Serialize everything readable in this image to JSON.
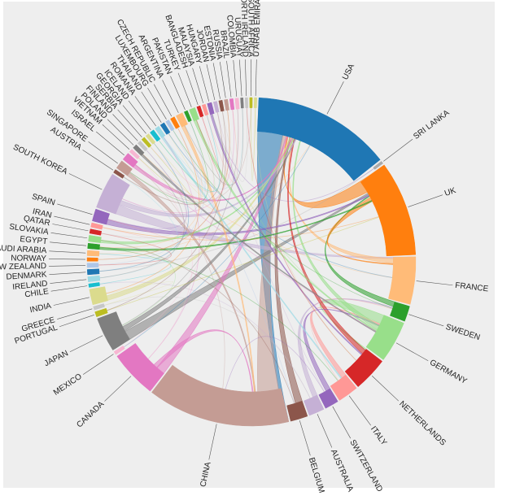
{
  "colors": {
    "panel_background": "#eeeeee",
    "page_background": "#ffffff",
    "label_color": "#222222",
    "ribbon_grey": "#c8c8c8"
  },
  "chart_data": {
    "type": "chord",
    "title": "",
    "grid": false,
    "legend": "none",
    "value_unit": "relative flow (estimated from arc spans)",
    "nodes": [
      {
        "name": "USA",
        "value": 160,
        "color": "#1f77b4"
      },
      {
        "name": "SRI LANKA",
        "value": 3,
        "color": "#aaaaaa"
      },
      {
        "name": "UK",
        "value": 110,
        "color": "#ff7f0e"
      },
      {
        "name": "FRANCE",
        "value": 55,
        "color": "#ffbb78"
      },
      {
        "name": "SWEDEN",
        "value": 18,
        "color": "#2ca02c"
      },
      {
        "name": "GERMANY",
        "value": 48,
        "color": "#98df8a"
      },
      {
        "name": "NETHERLANDS",
        "value": 40,
        "color": "#d62728"
      },
      {
        "name": "ITALY",
        "value": 24,
        "color": "#ff9896"
      },
      {
        "name": "SWITZERLAND",
        "value": 16,
        "color": "#9467bd"
      },
      {
        "name": "AUSTRALIA",
        "value": 18,
        "color": "#c5b0d5"
      },
      {
        "name": "BELGIUM",
        "value": 20,
        "color": "#8c564b"
      },
      {
        "name": "CHINA",
        "value": 165,
        "color": "#c49c94"
      },
      {
        "name": "CANADA",
        "value": 55,
        "color": "#e377c2"
      },
      {
        "name": "MEXICO",
        "value": 4,
        "color": "#f7b6d2"
      },
      {
        "name": "JAPAN",
        "value": 40,
        "color": "#7f7f7f"
      },
      {
        "name": "PORTUGAL",
        "value": 6,
        "color": "#bcbd22"
      },
      {
        "name": "GREECE",
        "value": 4,
        "color": "#c7c7c7"
      },
      {
        "name": "INDIA",
        "value": 18,
        "color": "#dbdb8d"
      },
      {
        "name": "CHILE",
        "value": 4,
        "color": "#17becf"
      },
      {
        "name": "IRELAND",
        "value": 6,
        "color": "#9edae5"
      },
      {
        "name": "DENMARK",
        "value": 6,
        "color": "#1f77b4"
      },
      {
        "name": "NEW ZEALAND",
        "value": 5,
        "color": "#aec7e8"
      },
      {
        "name": "NORWAY",
        "value": 4,
        "color": "#ff7f0e"
      },
      {
        "name": "SAUDI ARABIA",
        "value": 6,
        "color": "#ffbb78"
      },
      {
        "name": "EGYPT",
        "value": 6,
        "color": "#2ca02c"
      },
      {
        "name": "SLOVAKIA",
        "value": 7,
        "color": "#98df8a"
      },
      {
        "name": "QATAR",
        "value": 5,
        "color": "#d62728"
      },
      {
        "name": "IRAN",
        "value": 5,
        "color": "#ff9896"
      },
      {
        "name": "SPAIN",
        "value": 14,
        "color": "#9467bd"
      },
      {
        "name": "SOUTH KOREA",
        "value": 42,
        "color": "#c5b0d5"
      },
      {
        "name": "AUSTRIA",
        "value": 4,
        "color": "#8c564b"
      },
      {
        "name": "SINGAPORE",
        "value": 10,
        "color": "#c49c94"
      },
      {
        "name": "ISRAEL",
        "value": 9,
        "color": "#e377c2"
      },
      {
        "name": "VIETNAM",
        "value": 4,
        "color": "#f7b6d2"
      },
      {
        "name": "POLAND",
        "value": 5,
        "color": "#7f7f7f"
      },
      {
        "name": "FINLAND",
        "value": 4,
        "color": "#c7c7c7"
      },
      {
        "name": "SERBIA",
        "value": 4,
        "color": "#bcbd22"
      },
      {
        "name": "GEORGIA",
        "value": 4,
        "color": "#dbdb8d"
      },
      {
        "name": "ICELAND",
        "value": 5,
        "color": "#17becf"
      },
      {
        "name": "ROMANIA",
        "value": 5,
        "color": "#9edae5"
      },
      {
        "name": "THAILAND",
        "value": 5,
        "color": "#1f77b4"
      },
      {
        "name": "LUXEMBOURG",
        "value": 4,
        "color": "#aec7e8"
      },
      {
        "name": "CZECH REPUBLIC",
        "value": 5,
        "color": "#ff7f0e"
      },
      {
        "name": "ARGENTINA",
        "value": 8,
        "color": "#ffbb78"
      },
      {
        "name": "PAKISTAN",
        "value": 4,
        "color": "#2ca02c"
      },
      {
        "name": "TURKEY",
        "value": 7,
        "color": "#98df8a"
      },
      {
        "name": "BANGLADESH",
        "value": 4,
        "color": "#d62728"
      },
      {
        "name": "MALAYSIA",
        "value": 4,
        "color": "#ff9896"
      },
      {
        "name": "HUNGARY",
        "value": 5,
        "color": "#9467bd"
      },
      {
        "name": "JORDAN",
        "value": 4,
        "color": "#c5b0d5"
      },
      {
        "name": "ESTONIA",
        "value": 4,
        "color": "#8c564b"
      },
      {
        "name": "RUSSIA",
        "value": 4,
        "color": "#c49c94"
      },
      {
        "name": "BRAZIL",
        "value": 4,
        "color": "#e377c2"
      },
      {
        "name": "COLOMBIA",
        "value": 4,
        "color": "#f7b6d2"
      },
      {
        "name": "URUGUAY",
        "value": 3,
        "color": "#7f7f7f"
      },
      {
        "name": "NORTH IRELAND",
        "value": 3,
        "color": "#c7c7c7"
      },
      {
        "name": "SOUTH AFRICA",
        "value": 3,
        "color": "#bcbd22"
      },
      {
        "name": "U ARAB EMIRATES",
        "value": 3,
        "color": "#dbdb8d"
      }
    ],
    "major_flows": [
      {
        "source": "USA",
        "target": "CHINA",
        "value": 6
      },
      {
        "source": "CHINA",
        "target": "USA",
        "value": 5
      },
      {
        "source": "UK",
        "target": "USA",
        "value": 3
      },
      {
        "source": "JAPAN",
        "target": "UK",
        "value": 2
      },
      {
        "source": "CANADA",
        "target": "USA",
        "value": 2
      },
      {
        "source": "GERMANY",
        "target": "NETHERLANDS",
        "value": 2
      },
      {
        "source": "SOUTH KOREA",
        "target": "FRANCE",
        "value": 2
      },
      {
        "source": "BELGIUM",
        "target": "USA",
        "value": 2
      },
      {
        "source": "FRANCE",
        "target": "USA",
        "value": 1
      },
      {
        "source": "SWEDEN",
        "target": "UK",
        "value": 1
      },
      {
        "source": "ITALY",
        "target": "GERMANY",
        "value": 1
      },
      {
        "source": "INDIA",
        "target": "USA",
        "value": 1
      },
      {
        "source": "SPAIN",
        "target": "UK",
        "value": 1
      },
      {
        "source": "AUSTRALIA",
        "target": "SWEDEN",
        "value": 1
      },
      {
        "source": "NETHERLANDS",
        "target": "USA",
        "value": 1
      },
      {
        "source": "SINGAPORE",
        "target": "CHINA",
        "value": 1
      },
      {
        "source": "ISRAEL",
        "target": "USA",
        "value": 1
      },
      {
        "source": "SWITZERLAND",
        "target": "GERMANY",
        "value": 1
      },
      {
        "source": "ARGENTINA",
        "target": "CHINA",
        "value": 1
      },
      {
        "source": "SLOVAKIA",
        "target": "USA",
        "value": 1
      },
      {
        "source": "JAPAN",
        "target": "USA",
        "value": 1
      },
      {
        "source": "SOUTH KOREA",
        "target": "USA",
        "value": 1
      },
      {
        "source": "CANADA",
        "target": "CHINA",
        "value": 1
      },
      {
        "source": "UK",
        "target": "FRANCE",
        "value": 1
      },
      {
        "source": "GERMANY",
        "target": "USA",
        "value": 1
      },
      {
        "source": "TURKEY",
        "target": "GERMANY",
        "value": 1
      },
      {
        "source": "EGYPT",
        "target": "UK",
        "value": 1
      },
      {
        "source": "HUNGARY",
        "target": "NETHERLANDS",
        "value": 1
      },
      {
        "source": "ROMANIA",
        "target": "ITALY",
        "value": 1
      },
      {
        "source": "POLAND",
        "target": "GERMANY",
        "value": 1
      }
    ]
  }
}
